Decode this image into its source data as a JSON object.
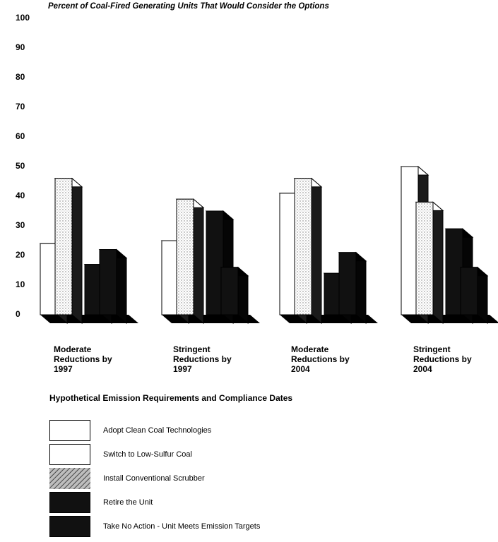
{
  "chart_data": {
    "type": "bar",
    "title": "Percent of Coal-Fired Generating Units That Would Consider the Options",
    "xlabel": "Hypothetical Emission Requirements and Compliance Dates",
    "ylabel": "",
    "ylim": [
      0,
      100
    ],
    "yticks": [
      "0",
      "10",
      "20",
      "30",
      "40",
      "50",
      "60",
      "70",
      "80",
      "90",
      "100"
    ],
    "categories": [
      [
        "Moderate",
        "Reductions by",
        "1997"
      ],
      [
        "Stringent",
        "Reductions by",
        "1997"
      ],
      [
        "Moderate",
        "Reductions by",
        "2004"
      ],
      [
        "Stringent",
        "Reductions by",
        "2004"
      ]
    ],
    "series": [
      {
        "name": "Adopt Clean Coal Technologies",
        "values": [
          24,
          25,
          41,
          50
        ],
        "color": "#ffffff",
        "pattern": "white"
      },
      {
        "name": "Switch to Low-Sulfur Coal",
        "values": [
          46,
          39,
          46,
          38
        ],
        "color": "#f4f4f4",
        "pattern": "dotted"
      },
      {
        "name": "Install Conventional Scrubber",
        "values": [
          0,
          0,
          0,
          0
        ],
        "color": "#9a9a9a",
        "pattern": "hatched"
      },
      {
        "name": "Retire the Unit",
        "values": [
          17,
          35,
          14,
          29
        ],
        "color": "#111111",
        "pattern": "black"
      },
      {
        "name": "Take No Action - Unit Meets Emission Targets",
        "values": [
          22,
          16,
          21,
          16
        ],
        "color": "#111111",
        "pattern": "black"
      }
    ],
    "grid": false,
    "legend": "bottom"
  }
}
